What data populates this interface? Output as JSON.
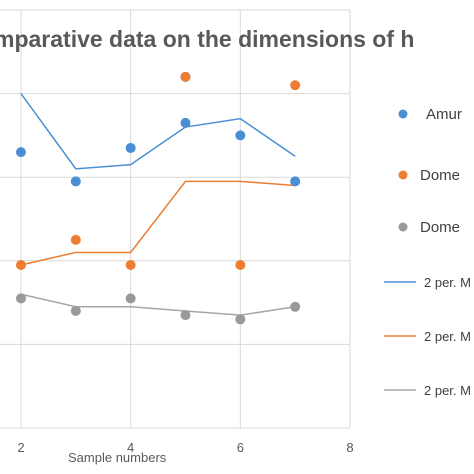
{
  "chart_data": {
    "type": "scatter",
    "title": "mparative data on the dimensions of h",
    "xlabel": "Sample numbers",
    "ylabel": "",
    "xlim": [
      1.8,
      8
    ],
    "ylim": [
      0,
      5
    ],
    "x_ticks": [
      "2",
      "4",
      "6",
      "8"
    ],
    "grid": true,
    "legend_position": "right",
    "series": [
      {
        "name": "Amur",
        "kind": "scatter",
        "color": "#4a8fd4",
        "x": [
          2,
          3,
          4,
          5,
          5,
          6,
          7
        ],
        "y": [
          3.3,
          2.95,
          3.35,
          3.65,
          4.2,
          3.5,
          2.95
        ]
      },
      {
        "name": "Dome",
        "kind": "scatter",
        "color": "#ed7d31",
        "x": [
          2,
          3,
          4,
          5,
          6,
          7
        ],
        "y": [
          1.95,
          2.25,
          1.95,
          4.2,
          1.95,
          4.1
        ]
      },
      {
        "name": "Dome",
        "kind": "scatter",
        "color": "#999999",
        "x": [
          2,
          3,
          4,
          5,
          6,
          7
        ],
        "y": [
          1.55,
          1.4,
          1.55,
          1.35,
          1.3,
          1.45
        ]
      },
      {
        "name": "2 per. M",
        "kind": "line",
        "color": "#4a8fd4",
        "x": [
          2,
          3,
          4,
          5,
          6,
          7
        ],
        "y": [
          4.0,
          3.1,
          3.15,
          3.6,
          3.7,
          3.25
        ]
      },
      {
        "name": "2 per. M",
        "kind": "line",
        "color": "#ed7d31",
        "x": [
          2,
          3,
          4,
          5,
          6,
          7
        ],
        "y": [
          1.95,
          2.1,
          2.1,
          2.95,
          2.95,
          2.9
        ]
      },
      {
        "name": "2 per. M",
        "kind": "line",
        "color": "#a6a6a6",
        "x": [
          2,
          3,
          4,
          5,
          6,
          7
        ],
        "y": [
          1.6,
          1.45,
          1.45,
          1.4,
          1.35,
          1.45
        ]
      }
    ]
  }
}
